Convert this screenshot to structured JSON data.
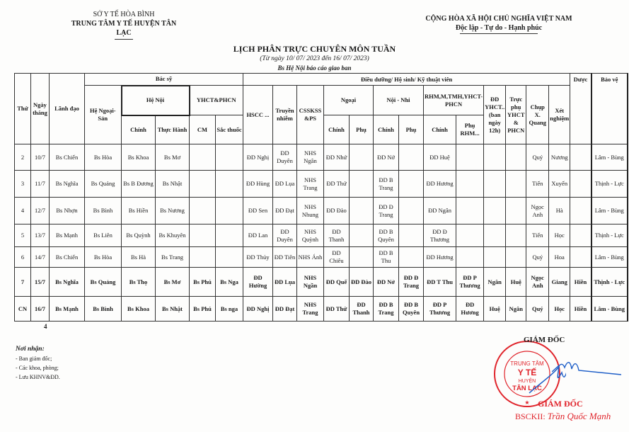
{
  "header_left": {
    "line1": "SỞ Y TẾ HÒA BÌNH",
    "line2": "TRUNG TÂM Y TẾ HUYỆN TÂN LẠC"
  },
  "header_right": {
    "line1": "CỘNG HÒA XÃ HỘI CHỦ NGHĨA VIỆT NAM",
    "line2": "Độc lập - Tự do - Hạnh phúc"
  },
  "title": "LỊCH PHÂN TRỰC CHUYÊN MÔN TUẦN",
  "subtitle": "(Từ ngày 10/ 07/ 2023 đến 16/ 07/ 2023)",
  "note": "Bs Hệ Nội báo cáo giao ban",
  "table": {
    "headers": {
      "thu": "Thứ",
      "ngay": "Ngày tháng",
      "lanh_dao": "Lãnh đạo",
      "bac_sy": "Bác sỹ",
      "dieu_duong": "Điều dưỡng/ Hộ sinh/ Kỹ thuật viên",
      "duoc": "Dược",
      "bao_ve": "Bảo vệ",
      "he_ngoai_san": "Hệ Ngoại-Sản",
      "he_noi": "Hệ Nội",
      "yhct_phcn": "YHCT&PHCN",
      "hscc": "HSCC ...",
      "truyen_nhiem": "Truyền nhiễm",
      "csskss": "CSSKSS &PS",
      "ngoai": "Ngoại",
      "noi_nhi": "Nội - Nhi",
      "rhm": "RHM,M,TMH,YHCT-PHCN",
      "dd_yhct": "ĐD YHCT.. (ban ngày 12h)",
      "truc_phu": "Trực phụ YHCT & PHCN",
      "chup_xq": "Chụp X. Quang",
      "xet_nghiem": "Xét nghiệm",
      "chinh": "Chính",
      "thuc_hanh": "Thực Hành",
      "cm": "CM",
      "sac_thuoc": "Sắc thuốc",
      "phu": "Phụ",
      "phu_rhm": "Phụ RHM..."
    },
    "rows": [
      {
        "bold": false,
        "cells": [
          "2",
          "10/7",
          "Bs Chiến",
          "Bs Hòa",
          "Bs Khoa",
          "Bs Mơ",
          "",
          "",
          "ĐD Nghị",
          "ĐD Duyên",
          "NHS Ngân",
          "ĐD Nhứ",
          "",
          "ĐD Nở",
          "",
          "ĐD Huệ",
          "",
          "",
          "",
          "Quý",
          "Nương",
          "",
          "Lâm - Bùng"
        ]
      },
      {
        "bold": false,
        "cells": [
          "3",
          "11/7",
          "Bs Nghĩa",
          "Bs Quảng",
          "Bs B Đương",
          "Bs Nhật",
          "",
          "",
          "ĐD Hùng",
          "ĐD Lụa",
          "NHS Trang",
          "ĐD Thứ",
          "",
          "ĐD B Trang",
          "",
          "ĐD Hương",
          "",
          "",
          "",
          "Tiến",
          "Xuyến",
          "",
          "Thịnh - Lực"
        ]
      },
      {
        "bold": false,
        "cells": [
          "4",
          "12/7",
          "Bs Nhợn",
          "Bs Bình",
          "Bs Hiền",
          "Bs Nương",
          "",
          "",
          "ĐD Sen",
          "ĐD Đạt",
          "NHS Nhung",
          "ĐD Đào",
          "",
          "ĐD Đ Trang",
          "",
          "ĐD Ngân",
          "",
          "",
          "",
          "Ngọc Anh",
          "Hà",
          "",
          "Lâm - Bùng"
        ]
      },
      {
        "bold": false,
        "cells": [
          "5",
          "13/7",
          "Bs Mạnh",
          "Bs Liên",
          "Bs Quỳnh",
          "Bs Khuyên",
          "",
          "",
          "ĐD Lan",
          "ĐD Duyên",
          "NHS Quỳnh",
          "ĐD Thanh",
          "",
          "ĐD B Quyên",
          "",
          "ĐD Đ Thương",
          "",
          "",
          "",
          "Tiến",
          "Học",
          "",
          "Thịnh - Lực"
        ]
      },
      {
        "bold": false,
        "cells": [
          "6",
          "14/7",
          "Bs Chiến",
          "Bs Hòa",
          "Bs Hà",
          "Bs Trang",
          "",
          "",
          "ĐD Thủy",
          "ĐD Tiên",
          "NHS Ánh",
          "ĐD Chiêu",
          "",
          "ĐD B Thu",
          "",
          "ĐD Hương",
          "",
          "",
          "",
          "Quý",
          "Hoa",
          "",
          "Lâm - Bùng"
        ]
      },
      {
        "bold": true,
        "cells": [
          "7",
          "15/7",
          "Bs Nghĩa",
          "Bs Quảng",
          "Bs Thọ",
          "Bs Mơ",
          "Bs Phú",
          "Bs Nga",
          "ĐD Hường",
          "ĐD Lụa",
          "NHS Ngần",
          "ĐD Quế",
          "ĐD Đào",
          "ĐD Nở",
          "ĐD Đ Trang",
          "ĐD T Thu",
          "ĐD P Thương",
          "Ngân",
          "Huệ",
          "Ngọc Anh",
          "Giang",
          "Hiền",
          "Thịnh - Lực"
        ]
      },
      {
        "bold": true,
        "cells": [
          "CN",
          "16/7",
          "Bs Mạnh",
          "Bs Bình",
          "Bs Khoa",
          "Bs Nhật",
          "Bs Phú",
          "Bs nga",
          "ĐD Nghị",
          "ĐD Đạt",
          "NHS Trang",
          "ĐD Thứ",
          "ĐD Thanh",
          "ĐD B Trang",
          "ĐD B Quyên",
          "ĐD P Thương",
          "ĐD Hương",
          "Huệ",
          "Ngân",
          "Quý",
          "Học",
          "Hiền",
          "Lâm - Bùng"
        ]
      }
    ]
  },
  "page_number": "4",
  "recipients": {
    "title": "Nơi nhận:",
    "items": [
      "- Ban giám đốc;",
      "- Các khoa, phòng;",
      "- Lưu KHNV&ĐD."
    ]
  },
  "signature": {
    "title": "GIÁM ĐỐC",
    "stamp_title": "GIÁM ĐỐC",
    "degree": "BSCKII:",
    "name": "Trần Quốc Mạnh",
    "stamp_text": [
      "TRUNG TÂM",
      "Y TẾ",
      "HUYỆN",
      "TÂN LẠC",
      "TỈNH HÒA BÌNH",
      "SỞ Y TẾ"
    ],
    "stamp_color": "#e0242b",
    "ink_color": "#1f5fc8"
  }
}
